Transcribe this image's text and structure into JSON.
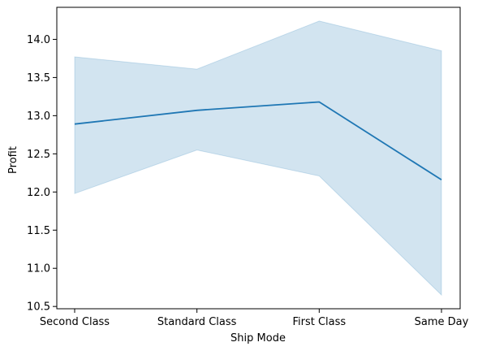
{
  "chart_data": {
    "type": "line",
    "categories": [
      "Second Class",
      "Standard Class",
      "First Class",
      "Same Day"
    ],
    "series": [
      {
        "values": [
          12.89,
          13.07,
          13.18,
          12.16
        ],
        "ci_lower": [
          11.98,
          12.55,
          12.21,
          10.65
        ],
        "ci_upper": [
          13.77,
          13.61,
          14.24,
          13.85
        ]
      }
    ],
    "xlabel": "Ship Mode",
    "ylabel": "Profit",
    "ylim": [
      10.47,
      14.42
    ],
    "yticks": [
      10.5,
      11.0,
      11.5,
      12.0,
      12.5,
      13.0,
      13.5,
      14.0
    ],
    "ytick_labels": [
      "10.5",
      "11.0",
      "11.5",
      "12.0",
      "12.5",
      "13.0",
      "13.5",
      "14.0"
    ],
    "grid": false,
    "colors": {
      "line": "#1f77b4",
      "band": "#1f77b4"
    }
  }
}
